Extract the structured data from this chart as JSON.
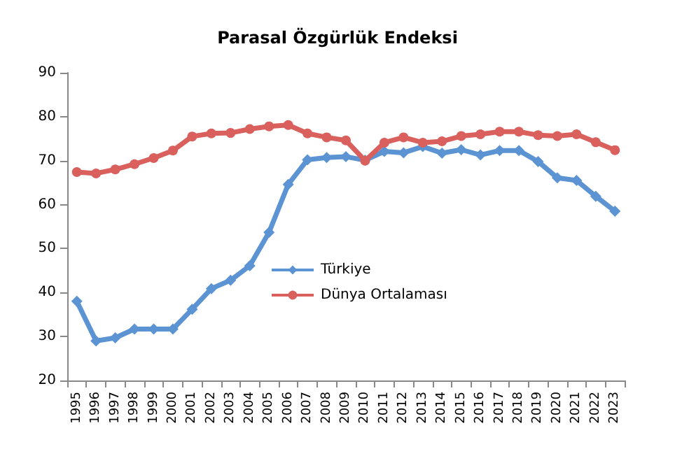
{
  "chart_data": {
    "type": "line",
    "title": "Parasal Özgürlük Endeksi",
    "categories": [
      "1995",
      "1996",
      "1997",
      "1998",
      "1999",
      "2000",
      "2001",
      "2002",
      "2003",
      "2004",
      "2005",
      "2006",
      "2007",
      "2008",
      "2009",
      "2010",
      "2011",
      "2012",
      "2013",
      "2014",
      "2015",
      "2016",
      "2017",
      "2018",
      "2019",
      "2020",
      "2021",
      "2022",
      "2023"
    ],
    "series": [
      {
        "name": "Türkiye",
        "color": "#5b93d3",
        "marker": "diamond",
        "values": [
          38,
          29,
          29.7,
          31.7,
          31.7,
          31.7,
          36.2,
          40.9,
          42.8,
          46.1,
          53.7,
          64.6,
          70.2,
          70.7,
          70.9,
          70.1,
          72.1,
          71.8,
          73.2,
          71.7,
          72.5,
          71.3,
          72.3,
          72.3,
          69.8,
          66.1,
          65.5,
          61.9,
          58.5
        ]
      },
      {
        "name": "Dünya Ortalaması",
        "color": "#d9605c",
        "marker": "circle",
        "values": [
          67.4,
          67.1,
          68,
          69.2,
          70.6,
          72.3,
          75.5,
          76.2,
          76.3,
          77.2,
          77.8,
          78.1,
          76.2,
          75.3,
          74.6,
          70,
          74.1,
          75.3,
          74.1,
          74.4,
          75.6,
          76,
          76.6,
          76.6,
          75.8,
          75.6,
          76,
          74.2,
          72.4
        ]
      }
    ],
    "ylim": [
      20,
      90
    ],
    "yticks": [
      20,
      30,
      40,
      50,
      60,
      70,
      80,
      90
    ],
    "grid": false,
    "legend": "center right"
  }
}
